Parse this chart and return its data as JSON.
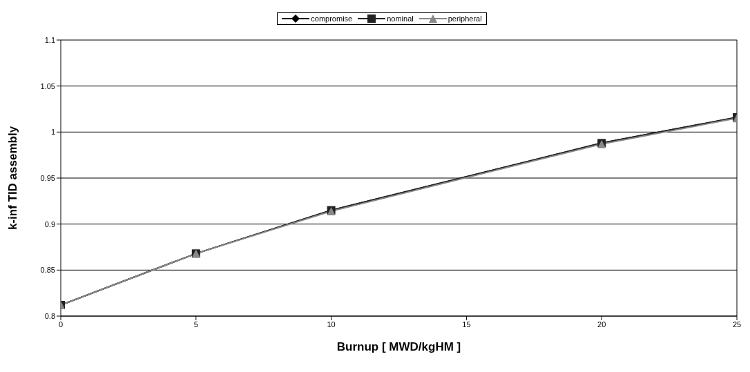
{
  "chart_data": {
    "type": "line",
    "xlabel": "Burnup [ MWD/kgHM ]",
    "ylabel": "k-inf TID assembly",
    "x": [
      0,
      5,
      10,
      20,
      25
    ],
    "series": [
      {
        "name": "compromise",
        "color": "#000000",
        "marker": "diamond",
        "values": [
          0.812,
          0.868,
          0.915,
          0.988,
          1.016
        ]
      },
      {
        "name": "nominal",
        "color": "#222222",
        "marker": "square",
        "values": [
          0.812,
          0.868,
          0.915,
          0.988,
          1.016
        ]
      },
      {
        "name": "peripheral",
        "color": "#888888",
        "marker": "triangle",
        "values": [
          0.812,
          0.868,
          0.914,
          0.987,
          1.015
        ]
      }
    ],
    "xlim": [
      0,
      25
    ],
    "xticks": [
      0,
      5,
      10,
      15,
      20,
      25
    ],
    "ylim": [
      0.8,
      1.1
    ],
    "yticks": [
      0.8,
      0.85,
      0.9,
      0.95,
      1,
      1.05,
      1.1
    ],
    "grid": "y",
    "legend": "top",
    "line_style": "solid"
  }
}
